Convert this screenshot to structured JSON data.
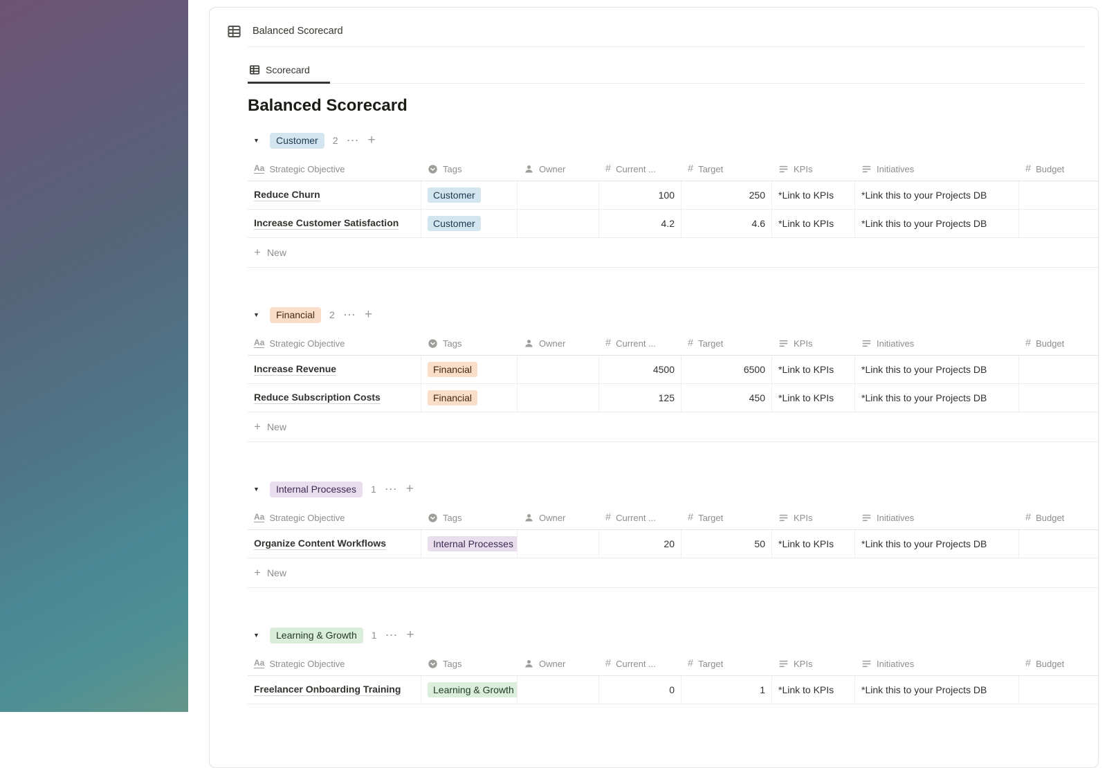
{
  "database": {
    "title": "Balanced Scorecard"
  },
  "tabs": [
    {
      "label": "Scorecard",
      "active": true
    }
  ],
  "page": {
    "title": "Balanced Scorecard"
  },
  "table": {
    "columns": [
      {
        "label": "Strategic Objective",
        "icon": "title"
      },
      {
        "label": "Tags",
        "icon": "select"
      },
      {
        "label": "Owner",
        "icon": "person"
      },
      {
        "label": "Current ...",
        "icon": "number"
      },
      {
        "label": "Target",
        "icon": "number"
      },
      {
        "label": "KPIs",
        "icon": "text"
      },
      {
        "label": "Initiatives",
        "icon": "text"
      },
      {
        "label": "Budget",
        "icon": "number"
      }
    ]
  },
  "colors": {
    "blue_tag_bg": "#d3e5ef",
    "orange_tag_bg": "#fadec9",
    "purple_tag_bg": "#e8deee",
    "green_tag_bg": "#dbeddb",
    "active_tab_underline": "#37352f"
  },
  "groups": [
    {
      "name": "Customer",
      "color": "blue",
      "count": "2",
      "new_label": "New",
      "rows": [
        {
          "objective": "Reduce Churn",
          "tag": "Customer",
          "tag_color": "blue",
          "owner": "",
          "current": "100",
          "target": "250",
          "kpis": "*Link to KPIs",
          "initiatives": "*Link this to your Projects DB",
          "budget": ""
        },
        {
          "objective": "Increase Customer Satisfaction",
          "tag": "Customer",
          "tag_color": "blue",
          "owner": "",
          "current": "4.2",
          "target": "4.6",
          "kpis": "*Link to KPIs",
          "initiatives": "*Link this to your Projects DB",
          "budget": ""
        }
      ]
    },
    {
      "name": "Financial",
      "color": "orange",
      "count": "2",
      "new_label": "New",
      "rows": [
        {
          "objective": "Increase Revenue",
          "tag": "Financial",
          "tag_color": "orange",
          "owner": "",
          "current": "4500",
          "target": "6500",
          "kpis": "*Link to KPIs",
          "initiatives": "*Link this to your Projects DB",
          "budget": ""
        },
        {
          "objective": "Reduce Subscription Costs",
          "tag": "Financial",
          "tag_color": "orange",
          "owner": "",
          "current": "125",
          "target": "450",
          "kpis": "*Link to KPIs",
          "initiatives": "*Link this to your Projects DB",
          "budget": ""
        }
      ]
    },
    {
      "name": "Internal Processes",
      "color": "purple",
      "count": "1",
      "new_label": "New",
      "rows": [
        {
          "objective": "Organize Content Workflows",
          "tag": "Internal Processes",
          "tag_color": "purple",
          "owner": "",
          "current": "20",
          "target": "50",
          "kpis": "*Link to KPIs",
          "initiatives": "*Link this to your Projects DB",
          "budget": ""
        }
      ]
    },
    {
      "name": "Learning & Growth",
      "color": "green",
      "count": "1",
      "rows": [
        {
          "objective": "Freelancer Onboarding Training",
          "tag": "Learning & Growth",
          "tag_color": "green",
          "owner": "",
          "current": "0",
          "target": "1",
          "kpis": "*Link to KPIs",
          "initiatives": "*Link this to your Projects DB",
          "budget": ""
        }
      ]
    }
  ]
}
